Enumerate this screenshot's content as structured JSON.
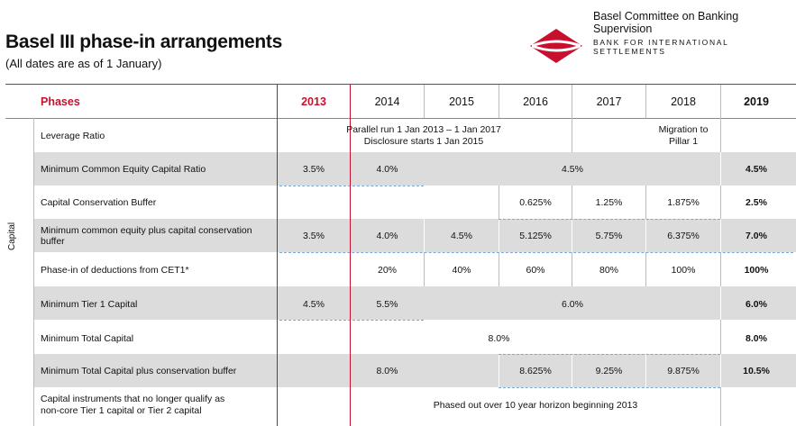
{
  "header": {
    "title": "Basel III phase-in arrangements",
    "subtitle": "(All dates are as of 1 January)",
    "org_name": "Basel Committee on Banking Supervision",
    "bis_name": "BANK FOR INTERNATIONAL SETTLEMENTS",
    "accent_color": "#c8102e"
  },
  "table": {
    "phases_label": "Phases",
    "years": [
      "2013",
      "2014",
      "2015",
      "2016",
      "2017",
      "2018",
      "2019"
    ],
    "side_label": "Capital",
    "rows": [
      {
        "label": "Leverage Ratio",
        "note1": "Parallel run 1 Jan 2013 – 1 Jan 2017",
        "note2": "Disclosure starts 1 Jan 2015",
        "migration1": "Migration to",
        "migration2": "Pillar 1"
      },
      {
        "label": "Minimum Common Equity Capital Ratio",
        "v2013": "3.5%",
        "v2014": "4.0%",
        "span": "4.5%",
        "v2019": "4.5%"
      },
      {
        "label": "Capital Conservation Buffer",
        "v2016": "0.625%",
        "v2017": "1.25%",
        "v2018": "1.875%",
        "v2019": "2.5%"
      },
      {
        "label1": "Minimum common equity plus capital conservation",
        "label2": "buffer",
        "v2013": "3.5%",
        "v2014": "4.0%",
        "v2015": "4.5%",
        "v2016": "5.125%",
        "v2017": "5.75%",
        "v2018": "6.375%",
        "v2019": "7.0%"
      },
      {
        "label": "Phase-in of deductions from CET1*",
        "v2014": "20%",
        "v2015": "40%",
        "v2016": "60%",
        "v2017": "80%",
        "v2018": "100%",
        "v2019": "100%"
      },
      {
        "label": "Minimum Tier 1 Capital",
        "v2013": "4.5%",
        "v2014": "5.5%",
        "span": "6.0%",
        "v2019": "6.0%"
      },
      {
        "label": "Minimum Total Capital",
        "span": "8.0%",
        "v2019": "8.0%"
      },
      {
        "label": "Minimum Total Capital plus conservation buffer",
        "v2014": "8.0%",
        "v2016": "8.625%",
        "v2017": "9.25%",
        "v2018": "9.875%",
        "v2019": "10.5%"
      },
      {
        "label1": "Capital instruments that no longer qualify as",
        "label2": "non-core Tier 1 capital or Tier 2 capital",
        "span": "Phased out over 10 year horizon beginning 2013"
      }
    ]
  }
}
